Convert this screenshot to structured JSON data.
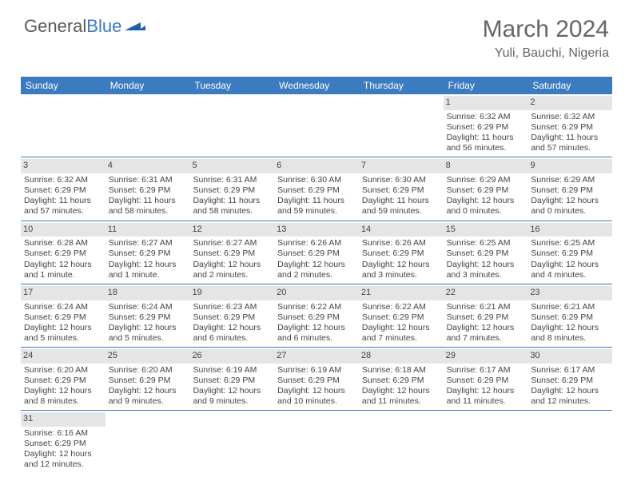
{
  "brand": {
    "part1": "General",
    "part2": "Blue"
  },
  "title": "March 2024",
  "location": "Yuli, Bauchi, Nigeria",
  "colors": {
    "header_bg": "#3b7bbf",
    "header_text": "#ffffff",
    "daynum_bg": "#e5e5e5",
    "text": "#444444",
    "border": "#3b7bbf"
  },
  "day_names": [
    "Sunday",
    "Monday",
    "Tuesday",
    "Wednesday",
    "Thursday",
    "Friday",
    "Saturday"
  ],
  "weeks": [
    [
      {
        "empty": true
      },
      {
        "empty": true
      },
      {
        "empty": true
      },
      {
        "empty": true
      },
      {
        "empty": true
      },
      {
        "num": "1",
        "sunrise": "Sunrise: 6:32 AM",
        "sunset": "Sunset: 6:29 PM",
        "daylight": "Daylight: 11 hours and 56 minutes."
      },
      {
        "num": "2",
        "sunrise": "Sunrise: 6:32 AM",
        "sunset": "Sunset: 6:29 PM",
        "daylight": "Daylight: 11 hours and 57 minutes."
      }
    ],
    [
      {
        "num": "3",
        "sunrise": "Sunrise: 6:32 AM",
        "sunset": "Sunset: 6:29 PM",
        "daylight": "Daylight: 11 hours and 57 minutes."
      },
      {
        "num": "4",
        "sunrise": "Sunrise: 6:31 AM",
        "sunset": "Sunset: 6:29 PM",
        "daylight": "Daylight: 11 hours and 58 minutes."
      },
      {
        "num": "5",
        "sunrise": "Sunrise: 6:31 AM",
        "sunset": "Sunset: 6:29 PM",
        "daylight": "Daylight: 11 hours and 58 minutes."
      },
      {
        "num": "6",
        "sunrise": "Sunrise: 6:30 AM",
        "sunset": "Sunset: 6:29 PM",
        "daylight": "Daylight: 11 hours and 59 minutes."
      },
      {
        "num": "7",
        "sunrise": "Sunrise: 6:30 AM",
        "sunset": "Sunset: 6:29 PM",
        "daylight": "Daylight: 11 hours and 59 minutes."
      },
      {
        "num": "8",
        "sunrise": "Sunrise: 6:29 AM",
        "sunset": "Sunset: 6:29 PM",
        "daylight": "Daylight: 12 hours and 0 minutes."
      },
      {
        "num": "9",
        "sunrise": "Sunrise: 6:29 AM",
        "sunset": "Sunset: 6:29 PM",
        "daylight": "Daylight: 12 hours and 0 minutes."
      }
    ],
    [
      {
        "num": "10",
        "sunrise": "Sunrise: 6:28 AM",
        "sunset": "Sunset: 6:29 PM",
        "daylight": "Daylight: 12 hours and 1 minute."
      },
      {
        "num": "11",
        "sunrise": "Sunrise: 6:27 AM",
        "sunset": "Sunset: 6:29 PM",
        "daylight": "Daylight: 12 hours and 1 minute."
      },
      {
        "num": "12",
        "sunrise": "Sunrise: 6:27 AM",
        "sunset": "Sunset: 6:29 PM",
        "daylight": "Daylight: 12 hours and 2 minutes."
      },
      {
        "num": "13",
        "sunrise": "Sunrise: 6:26 AM",
        "sunset": "Sunset: 6:29 PM",
        "daylight": "Daylight: 12 hours and 2 minutes."
      },
      {
        "num": "14",
        "sunrise": "Sunrise: 6:26 AM",
        "sunset": "Sunset: 6:29 PM",
        "daylight": "Daylight: 12 hours and 3 minutes."
      },
      {
        "num": "15",
        "sunrise": "Sunrise: 6:25 AM",
        "sunset": "Sunset: 6:29 PM",
        "daylight": "Daylight: 12 hours and 3 minutes."
      },
      {
        "num": "16",
        "sunrise": "Sunrise: 6:25 AM",
        "sunset": "Sunset: 6:29 PM",
        "daylight": "Daylight: 12 hours and 4 minutes."
      }
    ],
    [
      {
        "num": "17",
        "sunrise": "Sunrise: 6:24 AM",
        "sunset": "Sunset: 6:29 PM",
        "daylight": "Daylight: 12 hours and 5 minutes."
      },
      {
        "num": "18",
        "sunrise": "Sunrise: 6:24 AM",
        "sunset": "Sunset: 6:29 PM",
        "daylight": "Daylight: 12 hours and 5 minutes."
      },
      {
        "num": "19",
        "sunrise": "Sunrise: 6:23 AM",
        "sunset": "Sunset: 6:29 PM",
        "daylight": "Daylight: 12 hours and 6 minutes."
      },
      {
        "num": "20",
        "sunrise": "Sunrise: 6:22 AM",
        "sunset": "Sunset: 6:29 PM",
        "daylight": "Daylight: 12 hours and 6 minutes."
      },
      {
        "num": "21",
        "sunrise": "Sunrise: 6:22 AM",
        "sunset": "Sunset: 6:29 PM",
        "daylight": "Daylight: 12 hours and 7 minutes."
      },
      {
        "num": "22",
        "sunrise": "Sunrise: 6:21 AM",
        "sunset": "Sunset: 6:29 PM",
        "daylight": "Daylight: 12 hours and 7 minutes."
      },
      {
        "num": "23",
        "sunrise": "Sunrise: 6:21 AM",
        "sunset": "Sunset: 6:29 PM",
        "daylight": "Daylight: 12 hours and 8 minutes."
      }
    ],
    [
      {
        "num": "24",
        "sunrise": "Sunrise: 6:20 AM",
        "sunset": "Sunset: 6:29 PM",
        "daylight": "Daylight: 12 hours and 8 minutes."
      },
      {
        "num": "25",
        "sunrise": "Sunrise: 6:20 AM",
        "sunset": "Sunset: 6:29 PM",
        "daylight": "Daylight: 12 hours and 9 minutes."
      },
      {
        "num": "26",
        "sunrise": "Sunrise: 6:19 AM",
        "sunset": "Sunset: 6:29 PM",
        "daylight": "Daylight: 12 hours and 9 minutes."
      },
      {
        "num": "27",
        "sunrise": "Sunrise: 6:19 AM",
        "sunset": "Sunset: 6:29 PM",
        "daylight": "Daylight: 12 hours and 10 minutes."
      },
      {
        "num": "28",
        "sunrise": "Sunrise: 6:18 AM",
        "sunset": "Sunset: 6:29 PM",
        "daylight": "Daylight: 12 hours and 11 minutes."
      },
      {
        "num": "29",
        "sunrise": "Sunrise: 6:17 AM",
        "sunset": "Sunset: 6:29 PM",
        "daylight": "Daylight: 12 hours and 11 minutes."
      },
      {
        "num": "30",
        "sunrise": "Sunrise: 6:17 AM",
        "sunset": "Sunset: 6:29 PM",
        "daylight": "Daylight: 12 hours and 12 minutes."
      }
    ],
    [
      {
        "num": "31",
        "sunrise": "Sunrise: 6:16 AM",
        "sunset": "Sunset: 6:29 PM",
        "daylight": "Daylight: 12 hours and 12 minutes."
      },
      {
        "empty": true
      },
      {
        "empty": true
      },
      {
        "empty": true
      },
      {
        "empty": true
      },
      {
        "empty": true
      },
      {
        "empty": true
      }
    ]
  ]
}
